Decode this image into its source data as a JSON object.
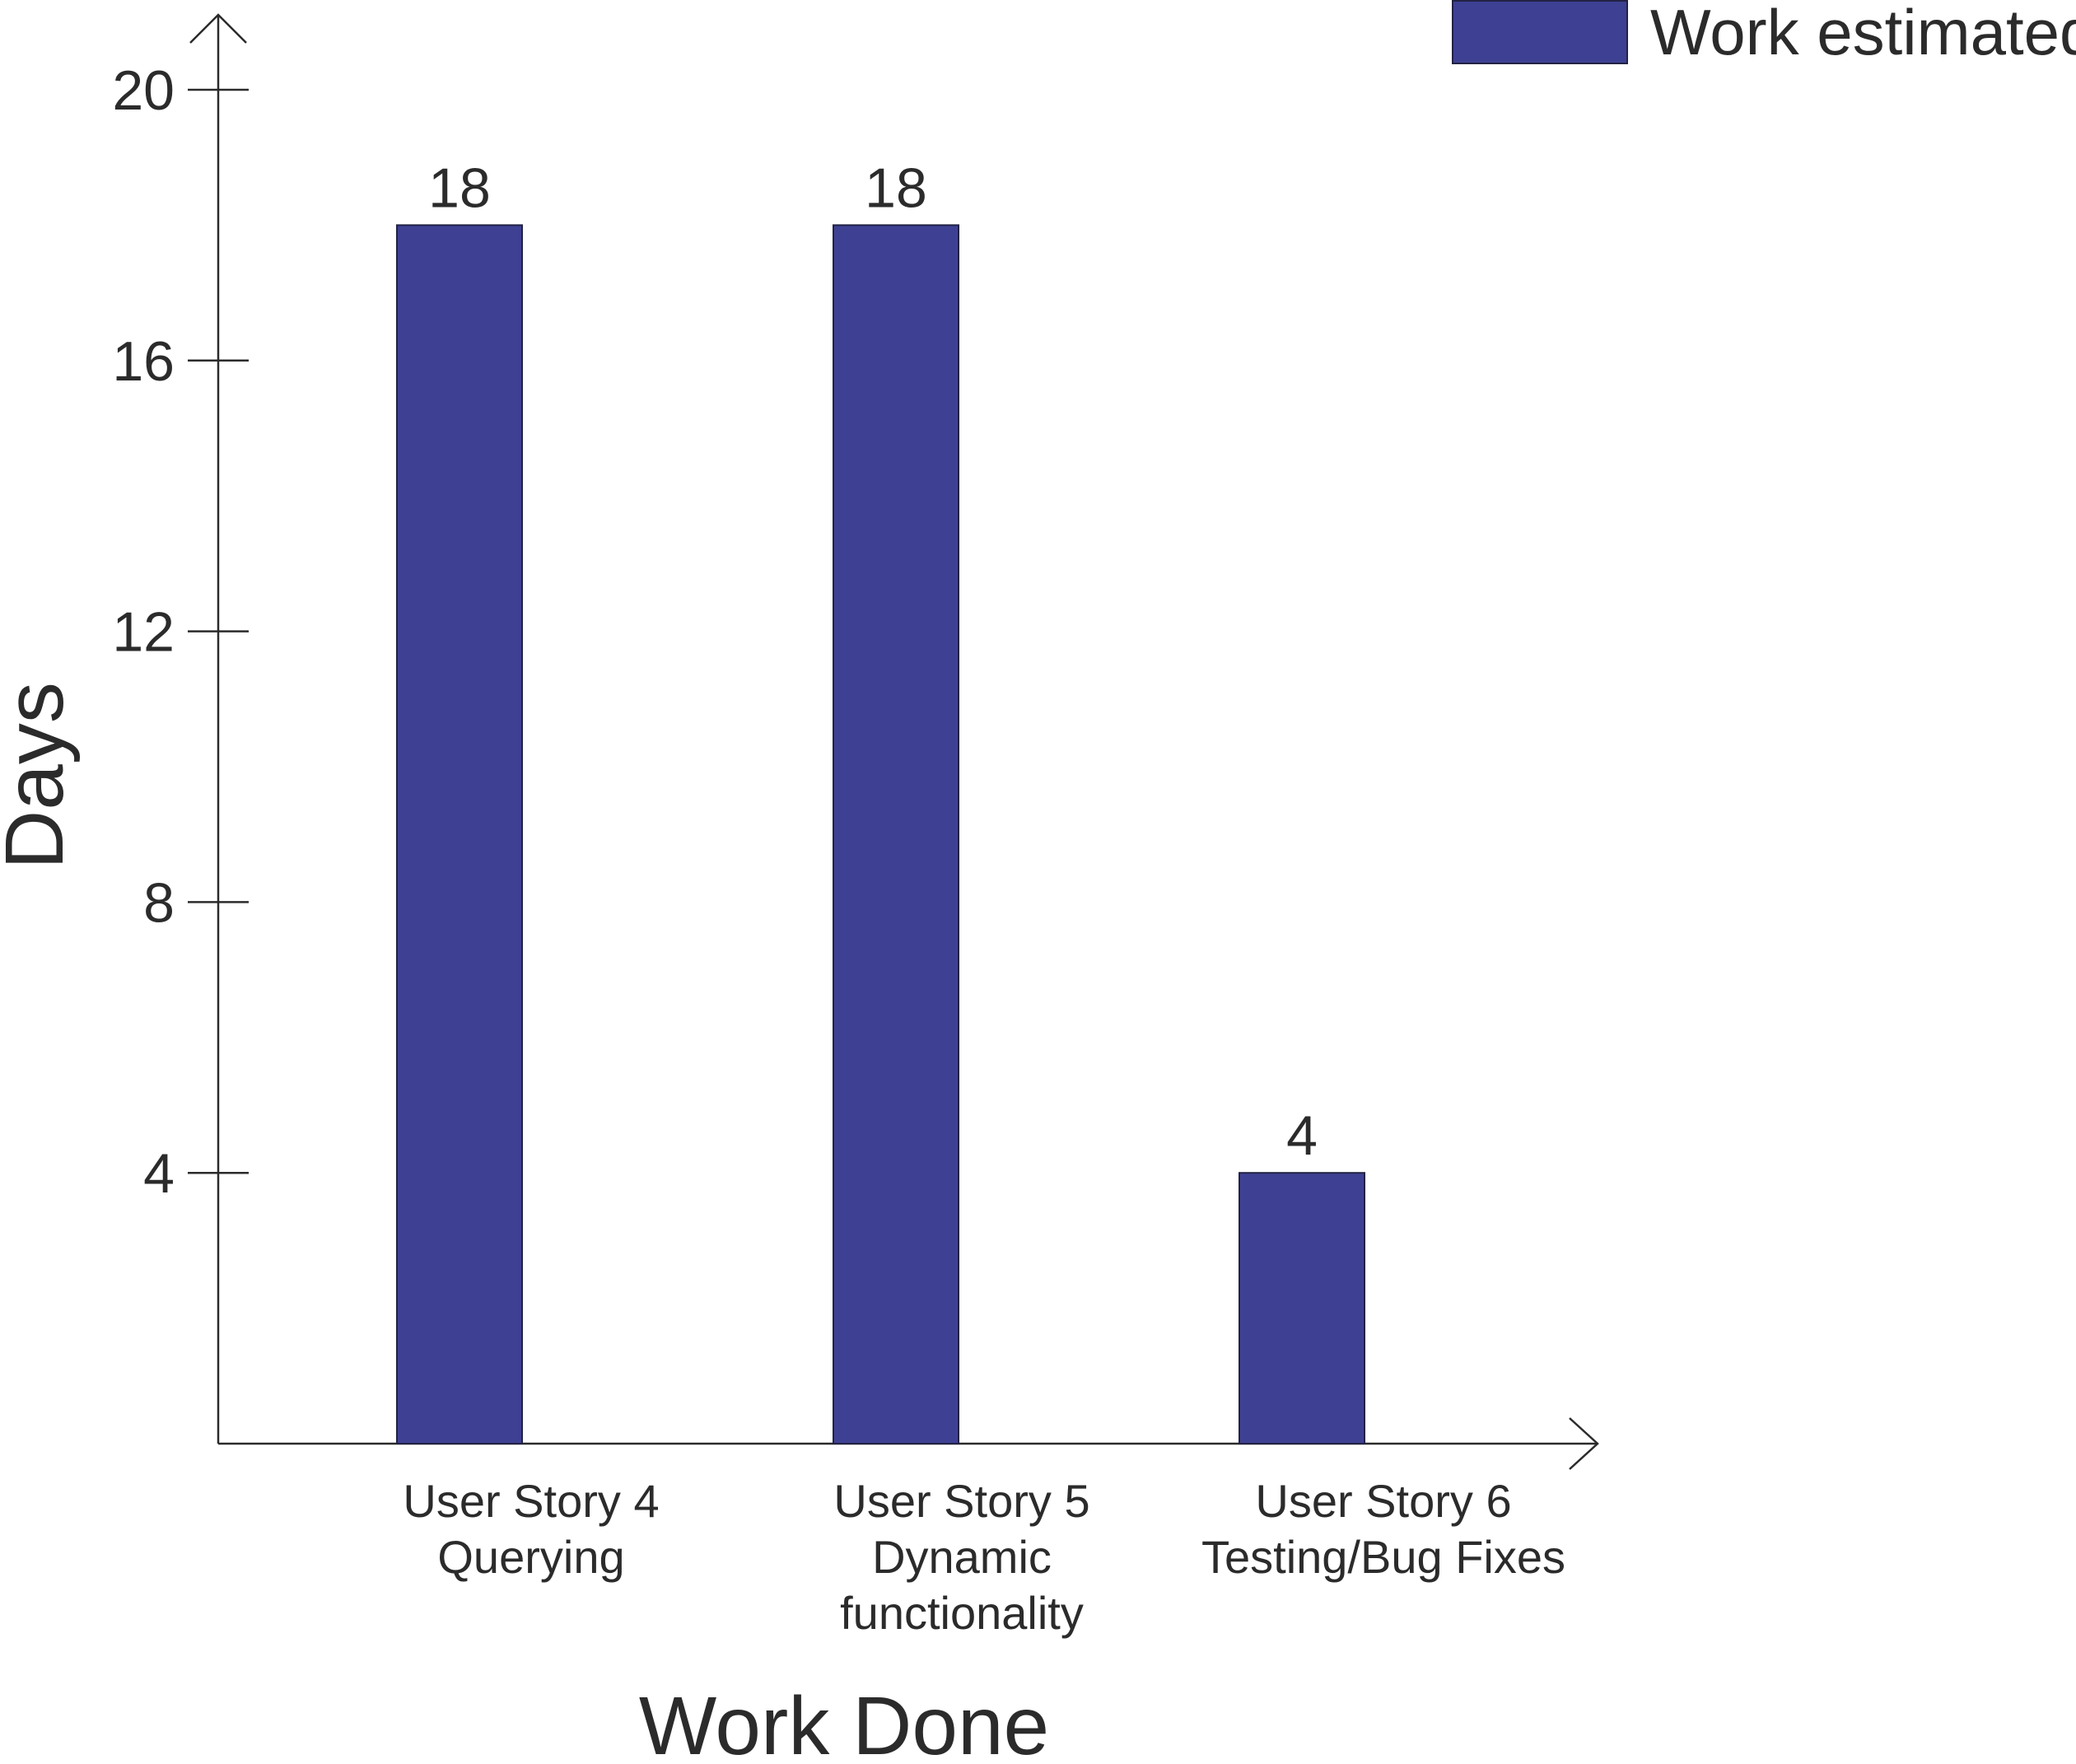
{
  "chart_data": {
    "type": "bar",
    "categories": [
      [
        "User Story 4",
        "Querying"
      ],
      [
        "User Story 5",
        "Dynamic",
        "functionality"
      ],
      [
        "User Story 6",
        "Testing/Bug Fixes"
      ]
    ],
    "series": [
      {
        "name": "Work estimated",
        "values": [
          18,
          18,
          4
        ],
        "color": "#3e4193"
      }
    ],
    "data_labels": [
      "18",
      "18",
      "4"
    ],
    "xlabel": "Work Done",
    "ylabel": "Days",
    "yticks": [
      4,
      8,
      12,
      16,
      20
    ],
    "ylim": [
      0,
      20
    ],
    "legend": {
      "position": "top-right",
      "label": "Work estimated"
    },
    "grid": false
  }
}
